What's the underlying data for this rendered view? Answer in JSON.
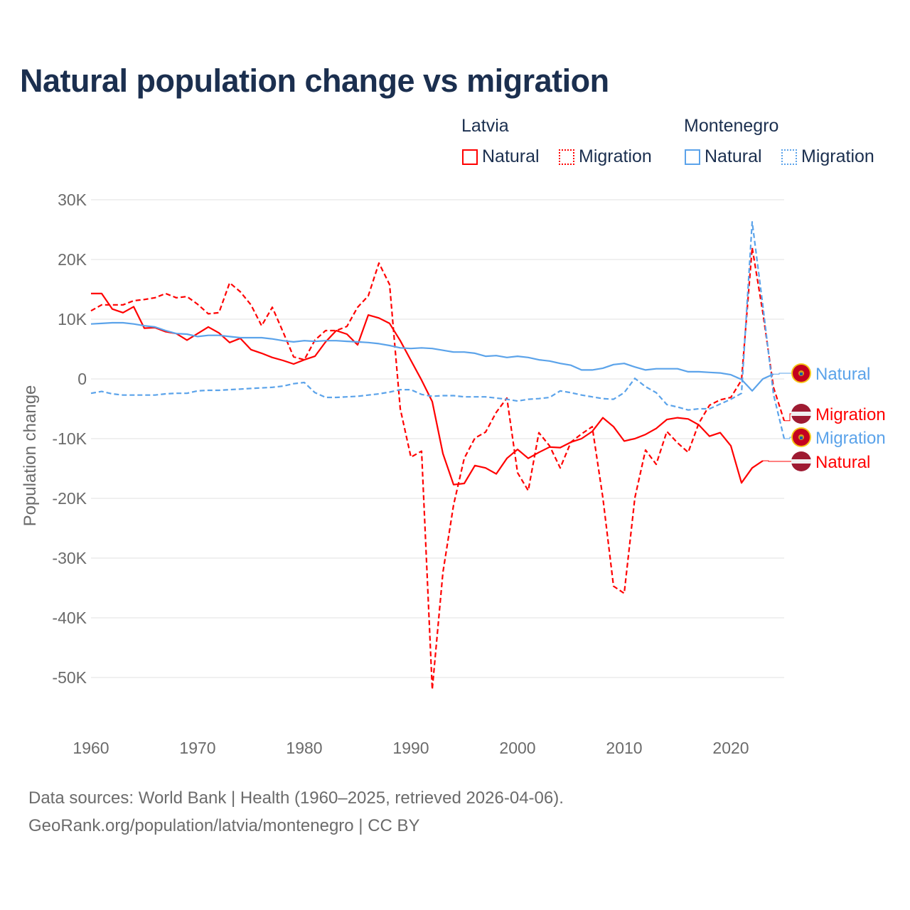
{
  "chart_data": {
    "type": "line",
    "title": "Natural population change vs migration",
    "xlabel": "",
    "ylabel": "Population change",
    "xlim": [
      1960,
      2025
    ],
    "ylim": [
      -50000,
      30000
    ],
    "grid": true,
    "legend_placement": "top-right",
    "x_ticks": [
      "1960",
      "1970",
      "1980",
      "1990",
      "2000",
      "2010",
      "2020"
    ],
    "y_ticks": [
      {
        "v": 30000,
        "label": "30K"
      },
      {
        "v": 20000,
        "label": "20K"
      },
      {
        "v": 10000,
        "label": "10K"
      },
      {
        "v": 0,
        "label": "0"
      },
      {
        "v": -10000,
        "label": "-10K"
      },
      {
        "v": -20000,
        "label": "-20K"
      },
      {
        "v": -30000,
        "label": "-30K"
      },
      {
        "v": -40000,
        "label": "-40K"
      },
      {
        "v": -50000,
        "label": "-50K"
      }
    ],
    "x_start": 1960,
    "legend": {
      "groups": [
        {
          "country": "Latvia",
          "items": [
            "Natural",
            "Migration"
          ]
        },
        {
          "country": "Montenegro",
          "items": [
            "Natural",
            "Migration"
          ]
        }
      ]
    },
    "series": [
      {
        "name": "Latvia Natural",
        "country": "Latvia",
        "kind": "Natural",
        "color": "#ff0000",
        "dash": false,
        "end_label": "Natural",
        "values": [
          14300,
          14300,
          11700,
          11100,
          12100,
          8500,
          8600,
          7900,
          7600,
          6500,
          7600,
          8700,
          7700,
          6100,
          6800,
          4900,
          4300,
          3600,
          3100,
          2500,
          3200,
          3800,
          6200,
          8100,
          7500,
          5700,
          10700,
          10200,
          9300,
          6400,
          3100,
          -200,
          -3800,
          -12500,
          -17700,
          -17500,
          -14500,
          -14900,
          -15900,
          -13300,
          -11800,
          -13300,
          -12300,
          -11400,
          -11500,
          -10600,
          -10000,
          -8800,
          -6500,
          -8000,
          -10400,
          -10000,
          -9300,
          -8300,
          -6800,
          -6500,
          -6700,
          -7700,
          -9600,
          -9000,
          -11200,
          -17400,
          -14900,
          -13700,
          null,
          null
        ]
      },
      {
        "name": "Latvia Migration",
        "country": "Latvia",
        "kind": "Migration",
        "color": "#ff0000",
        "dash": true,
        "end_label": "Migration",
        "values": [
          11400,
          12400,
          12400,
          12400,
          13100,
          13300,
          13600,
          14300,
          13600,
          13800,
          12500,
          10900,
          11100,
          16100,
          14600,
          12400,
          8900,
          12000,
          7900,
          3700,
          3200,
          6500,
          8100,
          8100,
          8800,
          12000,
          13900,
          19400,
          15800,
          -5000,
          -13100,
          -12100,
          -52000,
          -32400,
          -21100,
          -13300,
          -9900,
          -8900,
          -5600,
          -3200,
          -15700,
          -18700,
          -9000,
          -11200,
          -14900,
          -10600,
          -9200,
          -8000,
          -19900,
          -34700,
          -35900,
          -19900,
          -11900,
          -14300,
          -8800,
          -10700,
          -12300,
          -7400,
          -4400,
          -3500,
          -3100,
          -200,
          22000,
          11100,
          -1400,
          -7000
        ]
      },
      {
        "name": "Montenegro Natural",
        "country": "Montenegro",
        "kind": "Natural",
        "color": "#5ba3ea",
        "dash": false,
        "end_label": "Natural",
        "values": [
          9200,
          9300,
          9400,
          9400,
          9200,
          8900,
          8700,
          8100,
          7600,
          7500,
          7100,
          7300,
          7300,
          7100,
          6900,
          6900,
          6900,
          6700,
          6400,
          6200,
          6400,
          6300,
          6400,
          6400,
          6300,
          6200,
          6100,
          5900,
          5600,
          5200,
          5100,
          5200,
          5100,
          4800,
          4500,
          4500,
          4300,
          3800,
          3900,
          3600,
          3800,
          3600,
          3200,
          3000,
          2600,
          2300,
          1500,
          1500,
          1800,
          2400,
          2600,
          2000,
          1500,
          1700,
          1700,
          1700,
          1200,
          1200,
          1100,
          1000,
          700,
          -100,
          -2000,
          0,
          800,
          null
        ]
      },
      {
        "name": "Montenegro Migration",
        "country": "Montenegro",
        "kind": "Migration",
        "color": "#5ba3ea",
        "dash": true,
        "end_label": "Migration",
        "values": [
          -2400,
          -2100,
          -2500,
          -2700,
          -2700,
          -2700,
          -2700,
          -2500,
          -2400,
          -2400,
          -2000,
          -1900,
          -1900,
          -1800,
          -1700,
          -1600,
          -1500,
          -1400,
          -1200,
          -800,
          -600,
          -2300,
          -3100,
          -3100,
          -3000,
          -2900,
          -2700,
          -2500,
          -2200,
          -1800,
          -1800,
          -2600,
          -2900,
          -2800,
          -2800,
          -3000,
          -3000,
          -3000,
          -3200,
          -3400,
          -3700,
          -3400,
          -3300,
          -3100,
          -2000,
          -2300,
          -2700,
          -3000,
          -3300,
          -3400,
          -2300,
          100,
          -1300,
          -2300,
          -4300,
          -4700,
          -5200,
          -5000,
          -5000,
          -4200,
          -3400,
          -2400,
          26300,
          12300,
          -2600,
          -10000
        ]
      }
    ]
  },
  "title": "Natural population change vs migration",
  "legend": {
    "latvia": "Latvia",
    "montenegro": "Montenegro",
    "natural": "Natural",
    "migration": "Migration"
  },
  "colors": {
    "latvia": "#ff0000",
    "montenegro": "#5ba3ea",
    "title": "#1b2f4f"
  },
  "footer": {
    "line1": "Data sources: World Bank | Health (1960–2025, retrieved 2026-04-06).",
    "line2": "GeoRank.org/population/latvia/montenegro | CC BY"
  }
}
